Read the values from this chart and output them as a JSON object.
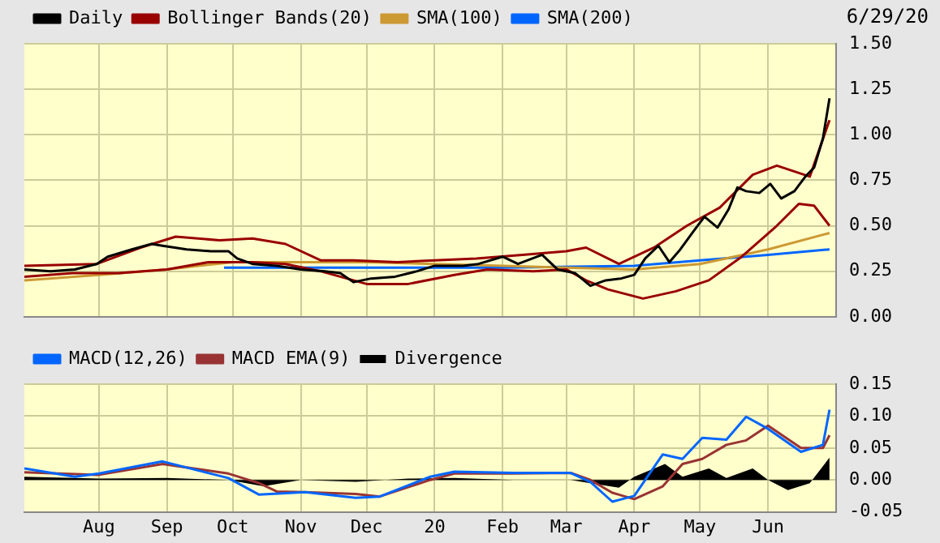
{
  "chart_data": [
    {
      "type": "line",
      "annotations": [
        "6/29/20"
      ],
      "legend": "top left",
      "grid": true,
      "tick_labels": "y",
      "marker": "none",
      "line_style": "solid",
      "xlim": [
        "2019-06-28",
        "2020-07-02"
      ],
      "xticks": [
        {
          "value": "2019-08-01",
          "label": null
        },
        {
          "value": "2019-09-01",
          "label": null
        },
        {
          "value": "2019-10-01",
          "label": null
        },
        {
          "value": "2019-11-01",
          "label": null
        },
        {
          "value": "2019-12-01",
          "label": null
        },
        {
          "value": "2020-01-01",
          "label": null
        },
        {
          "value": "2020-02-01",
          "label": null
        },
        {
          "value": "2020-03-01",
          "label": null
        },
        {
          "value": "2020-04-01",
          "label": null
        },
        {
          "value": "2020-05-01",
          "label": null
        },
        {
          "value": "2020-06-01",
          "label": null
        }
      ],
      "ylim": [
        0,
        1.5
      ],
      "yticks": [
        {
          "value": 0,
          "label": "0.00"
        },
        {
          "value": 0.25,
          "label": "0.25"
        },
        {
          "value": 0.5,
          "label": "0.50"
        },
        {
          "value": 0.75,
          "label": "0.75"
        },
        {
          "value": 1,
          "label": "1.00"
        },
        {
          "value": 1.25,
          "label": "1.25"
        },
        {
          "value": 1.5,
          "label": "1.50"
        }
      ],
      "series": [
        {
          "name": "Daily",
          "color": "#000000",
          "x": [
            "2019-06-28",
            "2019-07-10",
            "2019-07-21",
            "2019-07-31",
            "2019-08-05",
            "2019-08-16",
            "2019-08-25",
            "2019-08-30",
            "2019-09-10",
            "2019-09-21",
            "2019-09-29",
            "2019-10-03",
            "2019-10-10",
            "2019-10-21",
            "2019-11-01",
            "2019-11-12",
            "2019-11-19",
            "2019-11-25",
            "2019-12-03",
            "2019-12-14",
            "2019-12-24",
            "2020-01-01",
            "2020-01-14",
            "2020-01-21",
            "2020-02-01",
            "2020-02-08",
            "2020-02-19",
            "2020-02-26",
            "2020-03-05",
            "2020-03-12",
            "2020-03-19",
            "2020-03-26",
            "2020-04-01",
            "2020-04-06",
            "2020-04-12",
            "2020-04-17",
            "2020-04-22",
            "2020-04-28",
            "2020-05-03",
            "2020-05-09",
            "2020-05-14",
            "2020-05-18",
            "2020-05-22",
            "2020-05-28",
            "2020-06-02",
            "2020-06-07",
            "2020-06-13",
            "2020-06-18",
            "2020-06-22",
            "2020-06-26",
            "2020-06-29"
          ],
          "values": [
            0.26,
            0.25,
            0.26,
            0.29,
            0.33,
            0.37,
            0.4,
            0.39,
            0.37,
            0.36,
            0.36,
            0.32,
            0.29,
            0.28,
            0.26,
            0.25,
            0.24,
            0.19,
            0.21,
            0.22,
            0.25,
            0.28,
            0.28,
            0.29,
            0.33,
            0.29,
            0.34,
            0.26,
            0.24,
            0.17,
            0.2,
            0.21,
            0.23,
            0.32,
            0.39,
            0.3,
            0.37,
            0.47,
            0.55,
            0.49,
            0.59,
            0.71,
            0.69,
            0.68,
            0.73,
            0.65,
            0.69,
            0.77,
            0.82,
            0.98,
            1.2
          ]
        },
        {
          "name": "Bollinger Bands(20)",
          "color": "#990000",
          "x": [
            "2019-06-28",
            "2019-07-31",
            "2019-08-20",
            "2019-09-05",
            "2019-09-25",
            "2019-10-10",
            "2019-10-25",
            "2019-11-10",
            "2019-11-25",
            "2019-12-15",
            "2020-01-01",
            "2020-01-20",
            "2020-02-10",
            "2020-03-01",
            "2020-03-10",
            "2020-03-25",
            "2020-04-10",
            "2020-04-25",
            "2020-05-10",
            "2020-05-25",
            "2020-06-05",
            "2020-06-20",
            "2020-06-29"
          ],
          "values": [
            0.28,
            0.29,
            0.38,
            0.44,
            0.42,
            0.43,
            0.4,
            0.31,
            0.31,
            0.3,
            0.31,
            0.32,
            0.34,
            0.36,
            0.38,
            0.29,
            0.38,
            0.5,
            0.6,
            0.78,
            0.83,
            0.77,
            1.08
          ]
        },
        {
          "color": "#990000",
          "x": [
            "2019-06-28",
            "2019-07-20",
            "2019-08-10",
            "2019-09-01",
            "2019-09-20",
            "2019-10-10",
            "2019-10-25",
            "2019-11-10",
            "2019-12-01",
            "2019-12-20",
            "2020-01-10",
            "2020-01-25",
            "2020-02-15",
            "2020-03-01",
            "2020-03-10",
            "2020-03-20",
            "2020-04-05",
            "2020-04-20",
            "2020-05-05",
            "2020-05-20",
            "2020-06-05",
            "2020-06-15",
            "2020-06-22",
            "2020-06-29"
          ],
          "values": [
            0.22,
            0.24,
            0.24,
            0.26,
            0.3,
            0.3,
            0.29,
            0.25,
            0.18,
            0.18,
            0.23,
            0.26,
            0.25,
            0.26,
            0.2,
            0.15,
            0.1,
            0.14,
            0.2,
            0.33,
            0.5,
            0.62,
            0.61,
            0.5
          ]
        },
        {
          "name": "SMA(100)",
          "color": "#cc9933",
          "x": [
            "2019-06-28",
            "2019-08-01",
            "2019-09-01",
            "2019-10-01",
            "2019-11-01",
            "2019-12-01",
            "2020-01-01",
            "2020-02-01",
            "2020-03-01",
            "2020-04-01",
            "2020-05-01",
            "2020-06-01",
            "2020-06-29"
          ],
          "values": [
            0.2,
            0.23,
            0.26,
            0.3,
            0.3,
            0.3,
            0.29,
            0.28,
            0.27,
            0.26,
            0.29,
            0.37,
            0.46
          ]
        },
        {
          "name": "SMA(200)",
          "color": "#0066ff",
          "x": [
            "2019-09-27",
            "2019-12-01",
            "2020-02-01",
            "2020-04-01",
            "2020-05-01",
            "2020-06-01",
            "2020-06-29"
          ],
          "values": [
            0.27,
            0.27,
            0.27,
            0.28,
            0.31,
            0.34,
            0.37
          ]
        }
      ]
    },
    {
      "type": "line",
      "legend": "top left",
      "grid": true,
      "marker": "none",
      "line_style": "solid",
      "xlim": [
        "2019-06-28",
        "2020-07-02"
      ],
      "xticks": [
        {
          "value": "2019-08-01",
          "label": "Aug"
        },
        {
          "value": "2019-09-01",
          "label": "Sep"
        },
        {
          "value": "2019-10-01",
          "label": "Oct"
        },
        {
          "value": "2019-11-01",
          "label": "Nov"
        },
        {
          "value": "2019-12-01",
          "label": "Dec"
        },
        {
          "value": "2020-01-01",
          "label": "20"
        },
        {
          "value": "2020-02-01",
          "label": "Feb"
        },
        {
          "value": "2020-03-01",
          "label": "Mar"
        },
        {
          "value": "2020-04-01",
          "label": "Apr"
        },
        {
          "value": "2020-05-01",
          "label": "May"
        },
        {
          "value": "2020-06-01",
          "label": "Jun"
        }
      ],
      "ylim": [
        -0.05,
        0.15
      ],
      "yticks": [
        {
          "value": -0.05,
          "label": "-0.05"
        },
        {
          "value": 0,
          "label": "0.00"
        },
        {
          "value": 0.05,
          "label": "0.05"
        },
        {
          "value": 0.1,
          "label": "0.10"
        },
        {
          "value": 0.15,
          "label": "0.15"
        }
      ],
      "series": [
        {
          "name": "Divergence",
          "type": "area",
          "color": "#000000",
          "x": [
            "2019-06-28",
            "2019-08-01",
            "2019-09-01",
            "2019-09-29",
            "2019-10-15",
            "2019-11-01",
            "2019-11-26",
            "2019-12-20",
            "2020-01-10",
            "2020-02-06",
            "2020-03-03",
            "2020-03-12",
            "2020-03-25",
            "2020-04-01",
            "2020-04-15",
            "2020-04-23",
            "2020-05-05",
            "2020-05-13",
            "2020-05-25",
            "2020-06-01",
            "2020-06-10",
            "2020-06-20",
            "2020-06-29"
          ],
          "values": [
            0.005,
            0.002,
            0.003,
            0,
            -0.01,
            0,
            -0.003,
            0.002,
            0.003,
            0,
            0,
            -0.005,
            -0.012,
            0.005,
            0.025,
            0.005,
            0.018,
            0.003,
            0.018,
            0,
            -0.016,
            -0.005,
            0.035
          ]
        },
        {
          "name": "MACD(12,26)",
          "color": "#0066ff",
          "x": [
            "2019-06-28",
            "2019-07-21",
            "2019-08-01",
            "2019-08-30",
            "2019-09-29",
            "2019-10-13",
            "2019-11-03",
            "2019-11-26",
            "2019-12-07",
            "2019-12-30",
            "2020-01-10",
            "2020-02-06",
            "2020-03-03",
            "2020-03-12",
            "2020-03-22",
            "2020-04-01",
            "2020-04-14",
            "2020-04-23",
            "2020-05-02",
            "2020-05-13",
            "2020-05-22",
            "2020-06-01",
            "2020-06-16",
            "2020-06-26",
            "2020-06-29"
          ],
          "values": [
            0.018,
            0.005,
            0.01,
            0.029,
            0.003,
            -0.023,
            -0.019,
            -0.028,
            -0.026,
            0.005,
            0.013,
            0.011,
            0.011,
            -0.003,
            -0.034,
            -0.025,
            0.04,
            0.033,
            0.066,
            0.063,
            0.099,
            0.08,
            0.044,
            0.055,
            0.11
          ]
        },
        {
          "name": "MACD EMA(9)",
          "color": "#993333",
          "x": [
            "2019-06-28",
            "2019-08-01",
            "2019-08-30",
            "2019-09-29",
            "2019-10-13",
            "2019-10-21",
            "2019-11-03",
            "2019-11-26",
            "2019-12-07",
            "2019-12-30",
            "2020-01-10",
            "2020-02-06",
            "2020-03-03",
            "2020-03-12",
            "2020-03-22",
            "2020-04-01",
            "2020-04-14",
            "2020-04-23",
            "2020-05-02",
            "2020-05-13",
            "2020-05-22",
            "2020-06-01",
            "2020-06-16",
            "2020-06-26",
            "2020-06-29"
          ],
          "values": [
            0.012,
            0.008,
            0.025,
            0.01,
            -0.005,
            -0.018,
            -0.019,
            -0.022,
            -0.026,
            0,
            0.01,
            0.01,
            0.011,
            0,
            -0.02,
            -0.03,
            -0.01,
            0.025,
            0.033,
            0.055,
            0.062,
            0.085,
            0.05,
            0.05,
            0.07
          ]
        }
      ]
    }
  ]
}
